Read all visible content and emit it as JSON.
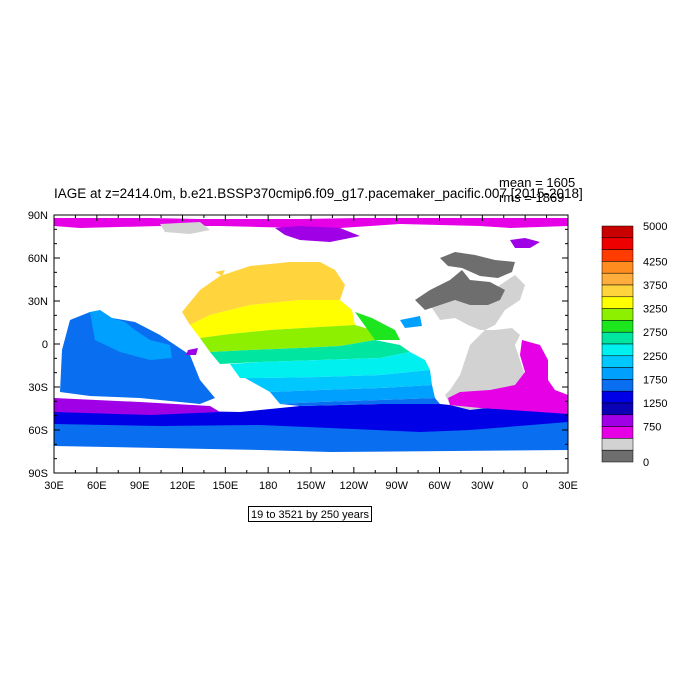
{
  "map": {
    "title": "IAGE at z=2414.0m, b.e21.BSSP370cmip6.f09_g17.pacemaker_pacific.007 [2015-2018]",
    "mean_label": "mean = 1605",
    "rms_label": "rms = 1869",
    "subtitle": "19 to 3521 by 250 years",
    "lat_labels": [
      "90N",
      "60N",
      "30N",
      "0",
      "30S",
      "60S",
      "90S"
    ],
    "lon_labels": [
      "30E",
      "60E",
      "90E",
      "120E",
      "150E",
      "180",
      "150W",
      "120W",
      "90W",
      "60W",
      "30W",
      "0",
      "30E"
    ],
    "colorbar": {
      "labels": [
        "5000",
        "4250",
        "3750",
        "3250",
        "2750",
        "2250",
        "1750",
        "1250",
        "750",
        "0"
      ],
      "colors": [
        "#c80000",
        "#ee0000",
        "#ff3c00",
        "#ff8c1e",
        "#ffad3c",
        "#ffd43c",
        "#ffff00",
        "#8cf000",
        "#1ee61e",
        "#00e6a0",
        "#00f0f0",
        "#00c8ff",
        "#00a0ff",
        "#0a6ef0",
        "#0000e6",
        "#0a00b4",
        "#a000e6",
        "#e600e6",
        "#d2d2d2",
        "#6e6e6e"
      ]
    },
    "land_color": "#ffffff"
  }
}
